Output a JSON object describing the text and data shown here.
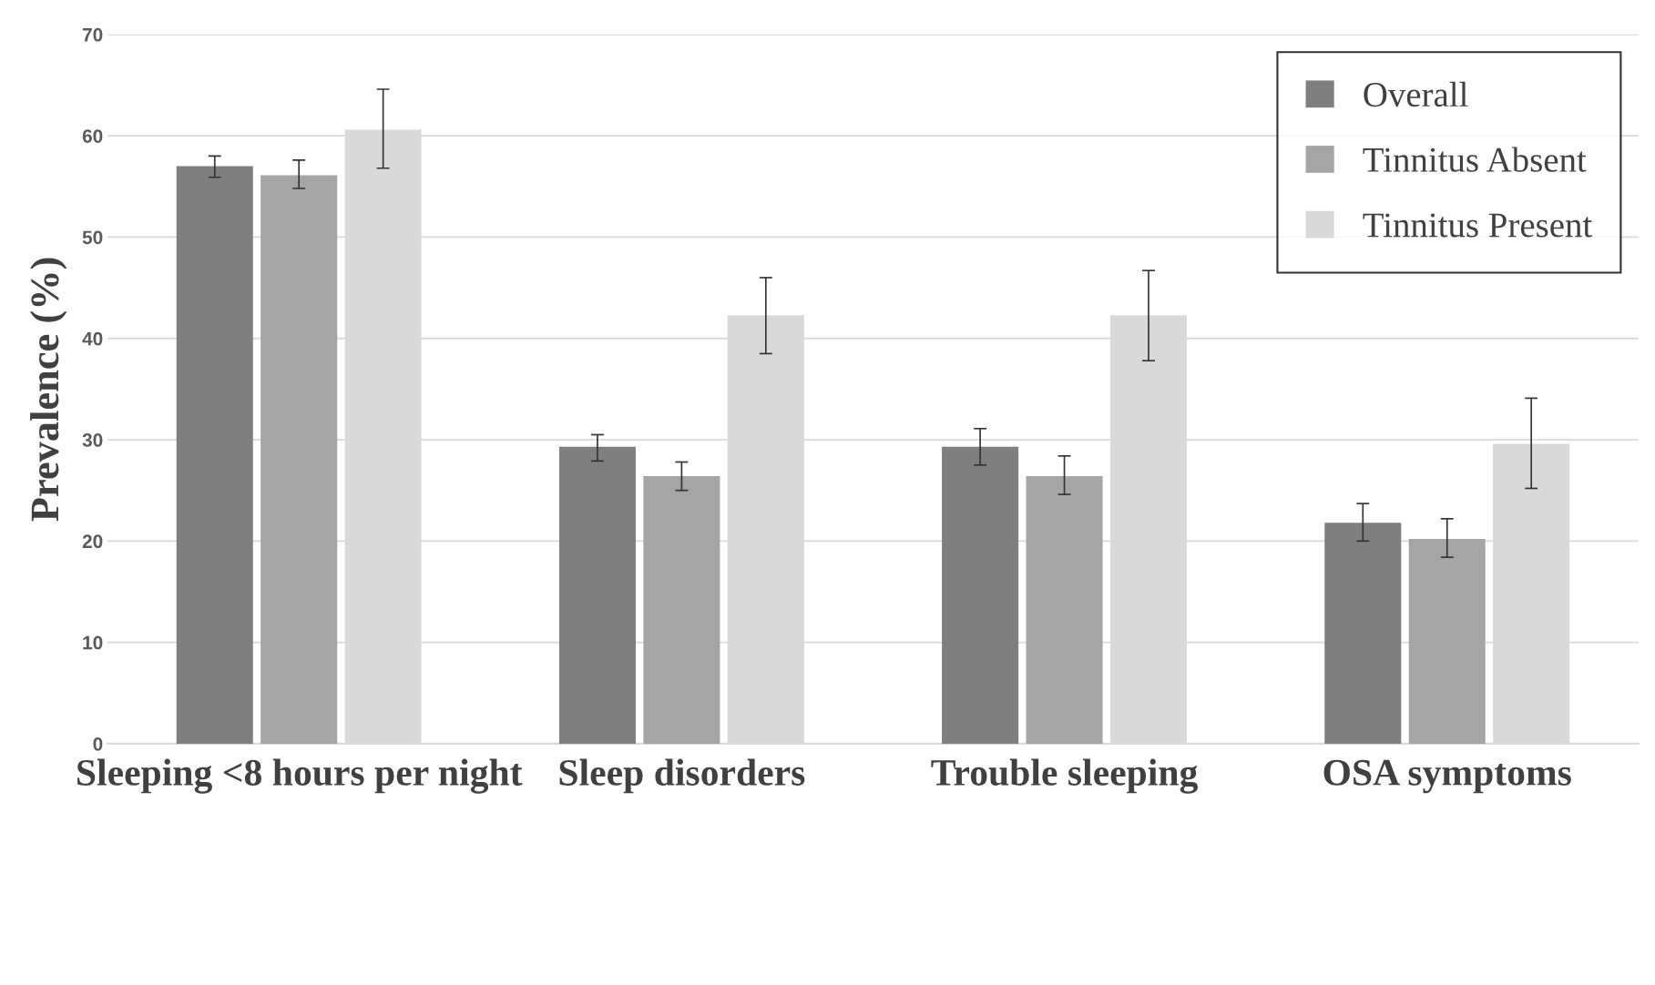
{
  "chart_data": {
    "type": "bar",
    "ylabel": "Prevalence (%)",
    "categories": [
      "Sleeping <8 hours per night",
      "Sleep disorders",
      "Trouble sleeping",
      "OSA symptoms"
    ],
    "series": [
      {
        "name": "Overall",
        "color": "#7f7f7f",
        "values": [
          57.0,
          29.3,
          29.3,
          21.8
        ],
        "errors": [
          [
            55.9,
            58.0
          ],
          [
            27.9,
            30.5
          ],
          [
            27.5,
            31.1
          ],
          [
            20.0,
            23.7
          ]
        ]
      },
      {
        "name": "Tinnitus Absent",
        "color": "#a5a5a5",
        "values": [
          56.1,
          26.4,
          26.4,
          20.2
        ],
        "errors": [
          [
            54.8,
            57.6
          ],
          [
            25.0,
            27.8
          ],
          [
            24.6,
            28.4
          ],
          [
            18.4,
            22.2
          ]
        ]
      },
      {
        "name": "Tinnitus Present",
        "color": "#d9d9d9",
        "values": [
          60.6,
          42.3,
          42.3,
          29.6
        ],
        "errors": [
          [
            56.8,
            64.6
          ],
          [
            38.5,
            46.0
          ],
          [
            37.8,
            46.7
          ],
          [
            25.2,
            34.1
          ]
        ]
      }
    ],
    "ylim": [
      0,
      70
    ],
    "yticks": [
      0,
      10,
      20,
      30,
      40,
      50,
      60,
      70
    ],
    "grid": "y",
    "legend": "top right"
  }
}
